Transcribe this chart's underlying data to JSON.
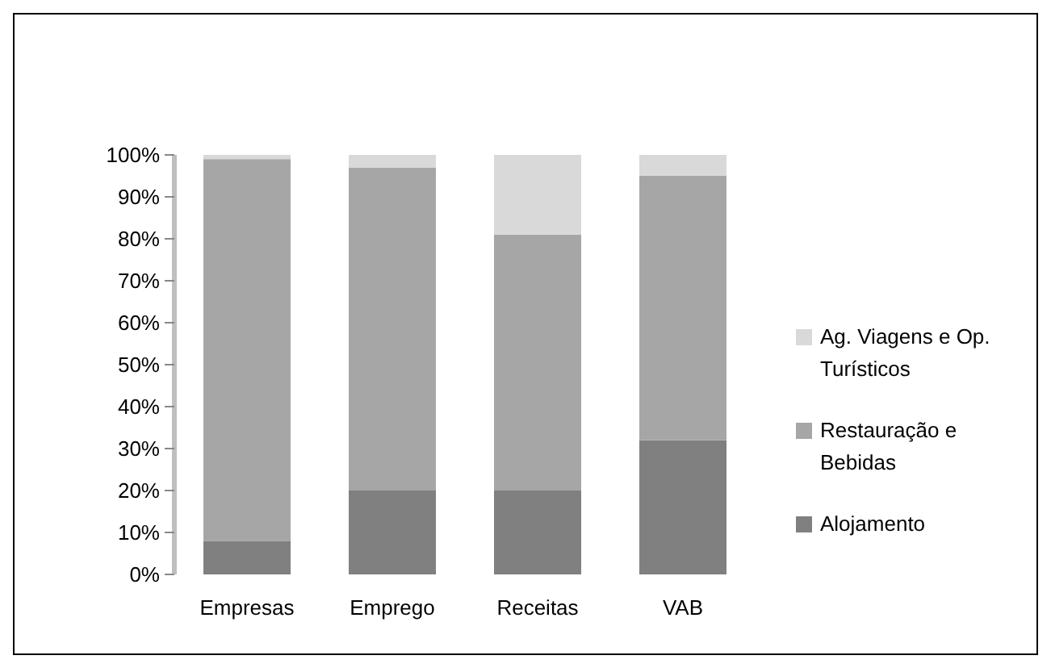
{
  "chart_data": {
    "type": "bar",
    "stacked": true,
    "categories": [
      "Empresas",
      "Emprego",
      "Receitas",
      "VAB"
    ],
    "series": [
      {
        "name": "Alojamento",
        "color": "#808080",
        "values": [
          8,
          20,
          20,
          32
        ]
      },
      {
        "name": "Restauração e Bebidas",
        "color": "#a6a6a6",
        "values": [
          91,
          77,
          61,
          63
        ]
      },
      {
        "name": "Ag. Viagens e Op. Turísticos",
        "color": "#d9d9d9",
        "values": [
          1,
          3,
          19,
          5
        ]
      }
    ],
    "ylim": [
      0,
      100
    ],
    "yticks": [
      {
        "value": 0,
        "label": "0%"
      },
      {
        "value": 10,
        "label": "10%"
      },
      {
        "value": 20,
        "label": "20%"
      },
      {
        "value": 30,
        "label": "30%"
      },
      {
        "value": 40,
        "label": "40%"
      },
      {
        "value": 50,
        "label": "50%"
      },
      {
        "value": 60,
        "label": "60%"
      },
      {
        "value": 70,
        "label": "70%"
      },
      {
        "value": 80,
        "label": "80%"
      },
      {
        "value": 90,
        "label": "90%"
      },
      {
        "value": 100,
        "label": "100%"
      }
    ],
    "grid": false,
    "legend": "right"
  }
}
